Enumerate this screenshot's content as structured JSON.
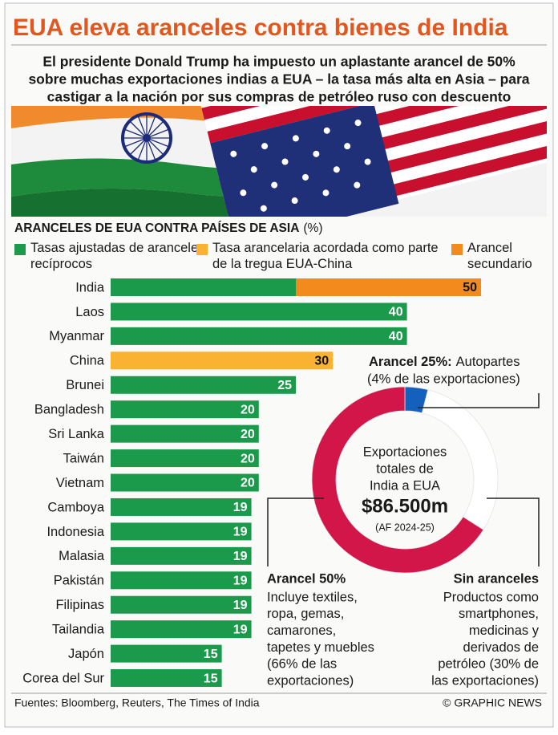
{
  "header": {
    "title": "EUA eleva aranceles contra bienes de India",
    "subtitle": [
      "El presidente Donald Trump ha impuesto un aplastante arancel de 50%",
      "sobre muchas exportaciones indias a EUA – la tasa más alta en Asia – para",
      "castigar a la nación por sus compras de petróleo ruso con descuento"
    ]
  },
  "chart_data": [
    {
      "type": "bar",
      "orientation": "horizontal",
      "stacked": true,
      "title": "ARANCELES DE EUA CONTRA PAÍSES DE ASIA",
      "unit": "(%)",
      "categories": [
        "India",
        "Laos",
        "Myanmar",
        "China",
        "Brunei",
        "Bangladesh",
        "Sri Lanka",
        "Taiwán",
        "Vietnam",
        "Camboya",
        "Indonesia",
        "Malasia",
        "Pakistán",
        "Filipinas",
        "Tailandia",
        "Japón",
        "Corea del Sur"
      ],
      "series": [
        {
          "name": "Tasas ajustadas de aranceles recíprocos",
          "color": "#1a9a4a",
          "values": [
            25,
            40,
            40,
            null,
            25,
            20,
            20,
            20,
            20,
            19,
            19,
            19,
            19,
            19,
            19,
            15,
            15
          ]
        },
        {
          "name": "Tasa arancelaria acordada como parte de la tregua EUA-China",
          "color": "#f9b232",
          "values": [
            null,
            null,
            null,
            30,
            null,
            null,
            null,
            null,
            null,
            null,
            null,
            null,
            null,
            null,
            null,
            null,
            null
          ]
        },
        {
          "name": "Arancel secundario",
          "color": "#f28a1e",
          "values": [
            25,
            null,
            null,
            null,
            null,
            null,
            null,
            null,
            null,
            null,
            null,
            null,
            null,
            null,
            null,
            null,
            null
          ]
        }
      ],
      "totals": [
        50,
        40,
        40,
        30,
        25,
        20,
        20,
        20,
        20,
        19,
        19,
        19,
        19,
        19,
        19,
        15,
        15
      ]
    },
    {
      "type": "pie",
      "donut": true,
      "center_text": [
        "Exportaciones",
        "totales de",
        "India a EUA"
      ],
      "center_value": "$86.500m",
      "center_note": "(AF 2024-25)",
      "categories": [
        "Arancel 25%",
        "Sin aranceles",
        "Arancel 50%"
      ],
      "values": [
        4,
        30,
        66
      ],
      "colors": [
        "#1560bd",
        "#ffffff",
        "#d3164a"
      ],
      "labels": [
        {
          "title": "Arancel 25%:",
          "text": [
            "Autopartes",
            "(4% de las exportaciones)"
          ]
        },
        {
          "title": "Sin aranceles",
          "text": [
            "Productos como",
            "smartphones,",
            "medicinas y",
            "derivados de",
            "petróleo (30% de",
            "las exportaciones)"
          ]
        },
        {
          "title": "Arancel 50%",
          "text": [
            "Incluye textiles,",
            "ropa, gemas,",
            "camarones,",
            "tapetes y muebles",
            "(66% de las",
            "exportaciones)"
          ]
        }
      ]
    }
  ],
  "footer": {
    "sources": "Fuentes: Bloomberg, Reuters, The Times of India",
    "credit": "© GRAPHIC NEWS"
  }
}
